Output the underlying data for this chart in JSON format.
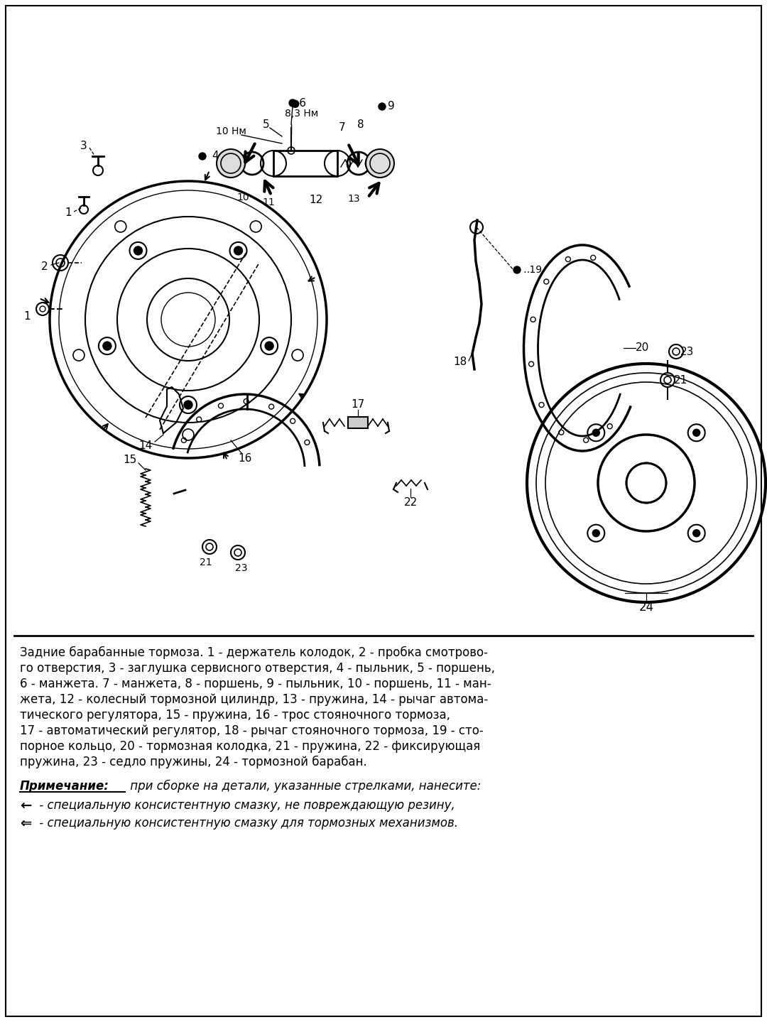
{
  "bg_color": "#ffffff",
  "border_color": "#000000",
  "text_color": "#000000",
  "caption_line1": "Задние барабанные тормоза. 1 - держатель колодок, 2 - пробка смотрово-",
  "caption_line2": "го отверстия, 3 - заглушка сервисного отверстия, 4 - пыльник, 5 - поршень,",
  "caption_line3": "6 - манжета. 7 - манжета, 8 - поршень, 9 - пыльник, 10 - поршень, 11 - ман-",
  "caption_line4": "жета, 12 - колесный тормозной цилиндр, 13 - пружина, 14 - рычаг автома-",
  "caption_line5": "тического регулятора, 15 - пружина, 16 - трос стояночного тормоза,",
  "caption_line6": "17 - автоматический регулятор, 18 - рычаг стояночного тормоза, 19 - сто-",
  "caption_line7": "порное кольцо, 20 - тормозная колодка, 21 - пружина, 22 - фиксирующая",
  "caption_line8": "пружина, 23 - седло пружины, 24 - тормозной барабан.",
  "note_title": "Примечание:",
  "note_rest": " при сборке на детали, указанные стрелками, нанесите:",
  "note_arrow1_sym": "←",
  "note_arrow1_text": " - специальную консистентную смазку, не повреждающую резину,",
  "note_arrow2_sym": "⇐",
  "note_arrow2_text": " - специальную консистентную смазку для тормозных механизмов.",
  "torque1": "●6",
  "torque1_val": "8,3 Нм",
  "torque2": "10 Нм",
  "figsize": [
    10.8,
    14.39
  ],
  "dpi": 100
}
